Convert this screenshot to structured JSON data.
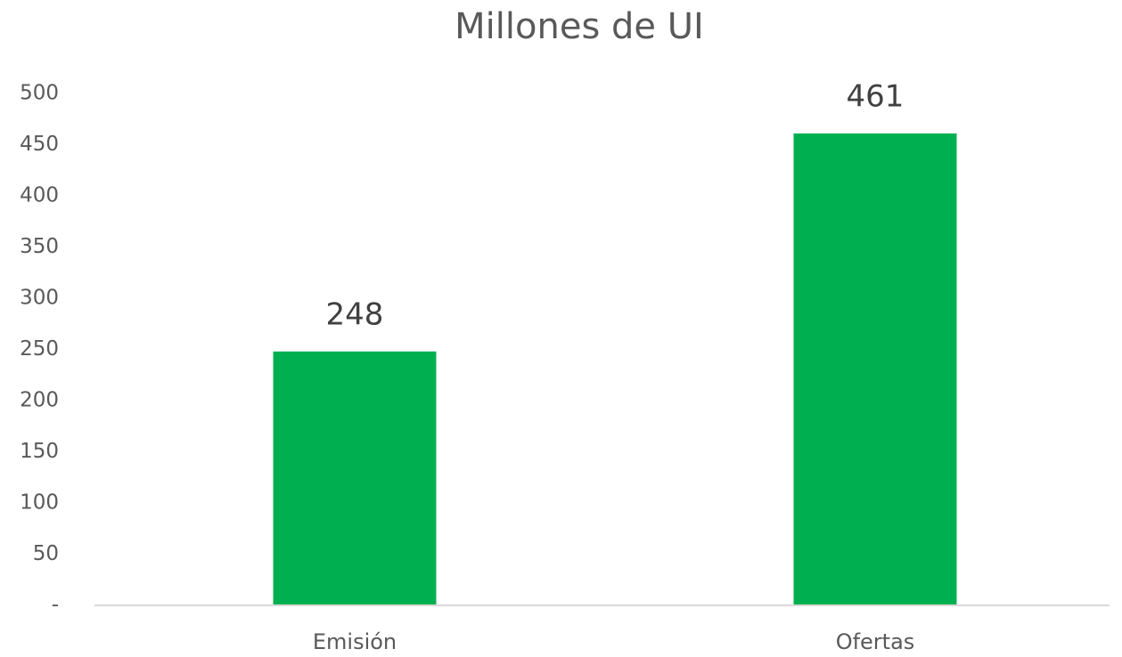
{
  "chart_data": {
    "type": "bar",
    "title": "Millones de UI",
    "categories": [
      "Emisión",
      "Ofertas"
    ],
    "values": [
      248,
      461
    ],
    "color": "#00b050",
    "ylim": [
      0,
      500
    ],
    "yticks": [
      {
        "value": 0,
        "label": "-"
      },
      50,
      100,
      150,
      200,
      250,
      300,
      350,
      400,
      450,
      500
    ],
    "grid": false
  }
}
